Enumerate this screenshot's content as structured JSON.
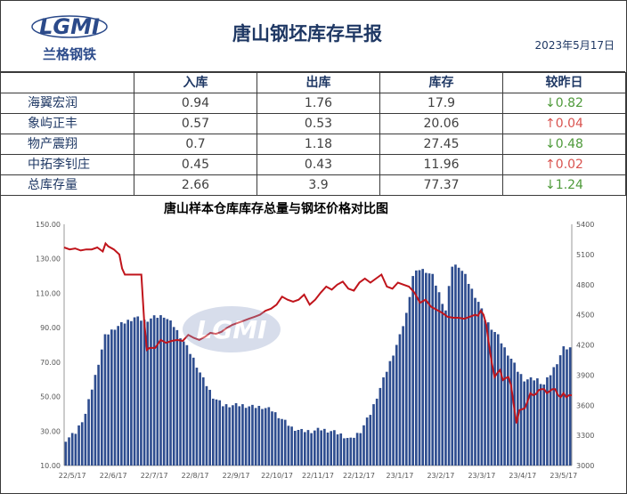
{
  "header": {
    "title": "唐山钢坯库存早报",
    "date": "2023年5月17日",
    "logo_letters": "LGMI",
    "logo_caption": "兰格钢铁"
  },
  "table": {
    "columns": [
      "",
      "入库",
      "出库",
      "库存",
      "较昨日"
    ],
    "rows": [
      {
        "name": "海翼宏润",
        "in": "0.94",
        "out": "1.76",
        "stock": "17.9",
        "arrow": "↓",
        "change": "0.82",
        "dir": "down"
      },
      {
        "name": "象屿正丰",
        "in": "0.57",
        "out": "0.53",
        "stock": "20.06",
        "arrow": "↑",
        "change": "0.04",
        "dir": "up"
      },
      {
        "name": "物产震翔",
        "in": "0.7",
        "out": "1.18",
        "stock": "27.45",
        "arrow": "↓",
        "change": "0.48",
        "dir": "down"
      },
      {
        "name": "中拓李钊庄",
        "in": "0.45",
        "out": "0.43",
        "stock": "11.96",
        "arrow": "↑",
        "change": "0.02",
        "dir": "up"
      },
      {
        "name": "总库存量",
        "in": "2.66",
        "out": "3.9",
        "stock": "77.37",
        "arrow": "↓",
        "change": "1.24",
        "dir": "down"
      }
    ]
  },
  "chart_data": {
    "type": "bar+line",
    "title": "唐山样本仓库库存总量与钢坯价格对比图",
    "x_labels": [
      "22/5/17",
      "22/6/17",
      "22/7/17",
      "22/8/17",
      "22/9/17",
      "22/10/17",
      "22/11/17",
      "22/12/17",
      "23/1/17",
      "23/2/17",
      "23/3/17",
      "23/4/17",
      "23/5/17"
    ],
    "y_left": {
      "min": 10,
      "max": 150,
      "ticks": [
        "10.00",
        "30.00",
        "50.00",
        "70.00",
        "90.00",
        "110.00",
        "130.00",
        "150.00"
      ]
    },
    "y_right": {
      "min": 3000,
      "max": 5400,
      "ticks": [
        "3000",
        "3300",
        "3600",
        "3900",
        "4200",
        "4500",
        "4800",
        "5100",
        "5400"
      ]
    },
    "bar_anchors": [
      [
        0,
        25
      ],
      [
        3,
        29
      ],
      [
        6,
        40
      ],
      [
        9,
        62
      ],
      [
        12,
        85
      ],
      [
        15,
        90
      ],
      [
        18,
        93
      ],
      [
        21,
        96
      ],
      [
        24,
        94
      ],
      [
        27,
        96
      ],
      [
        30,
        97
      ],
      [
        33,
        91
      ],
      [
        36,
        82
      ],
      [
        39,
        72
      ],
      [
        42,
        60
      ],
      [
        45,
        50
      ],
      [
        48,
        45
      ],
      [
        51,
        45
      ],
      [
        54,
        45
      ],
      [
        57,
        44
      ],
      [
        60,
        44
      ],
      [
        63,
        42
      ],
      [
        66,
        37
      ],
      [
        69,
        32
      ],
      [
        72,
        30
      ],
      [
        75,
        30
      ],
      [
        78,
        31
      ],
      [
        81,
        30
      ],
      [
        84,
        28
      ],
      [
        87,
        25
      ],
      [
        90,
        30
      ],
      [
        93,
        40
      ],
      [
        96,
        55
      ],
      [
        99,
        70
      ],
      [
        102,
        85
      ],
      [
        104,
        98
      ],
      [
        106,
        120
      ],
      [
        108,
        124
      ],
      [
        110,
        123
      ],
      [
        112,
        120
      ],
      [
        114,
        110
      ],
      [
        116,
        100
      ],
      [
        118,
        126
      ],
      [
        120,
        126
      ],
      [
        122,
        120
      ],
      [
        124,
        112
      ],
      [
        126,
        105
      ],
      [
        128,
        95
      ],
      [
        130,
        90
      ],
      [
        132,
        85
      ],
      [
        134,
        78
      ],
      [
        136,
        72
      ],
      [
        138,
        65
      ],
      [
        140,
        60
      ],
      [
        142,
        60
      ],
      [
        144,
        60
      ],
      [
        146,
        57
      ],
      [
        148,
        63
      ],
      [
        150,
        70
      ],
      [
        152,
        78
      ],
      [
        154,
        78
      ]
    ],
    "bar_count": 155,
    "bar_color": "#2e4d8f",
    "price_series": [
      [
        0,
        5170
      ],
      [
        2,
        5150
      ],
      [
        4,
        5160
      ],
      [
        6,
        5140
      ],
      [
        8,
        5150
      ],
      [
        10,
        5150
      ],
      [
        12,
        5170
      ],
      [
        14,
        5130
      ],
      [
        15,
        5210
      ],
      [
        16,
        5180
      ],
      [
        18,
        5150
      ],
      [
        20,
        5100
      ],
      [
        21,
        4960
      ],
      [
        22,
        4900
      ],
      [
        24,
        4900
      ],
      [
        26,
        4900
      ],
      [
        28,
        4900
      ],
      [
        29,
        4450
      ],
      [
        30,
        4150
      ],
      [
        31,
        4170
      ],
      [
        33,
        4170
      ],
      [
        35,
        4250
      ],
      [
        37,
        4220
      ],
      [
        39,
        4240
      ],
      [
        41,
        4250
      ],
      [
        43,
        4240
      ],
      [
        45,
        4300
      ],
      [
        47,
        4270
      ],
      [
        49,
        4250
      ],
      [
        51,
        4280
      ],
      [
        53,
        4320
      ],
      [
        55,
        4310
      ],
      [
        57,
        4330
      ],
      [
        59,
        4370
      ],
      [
        61,
        4400
      ],
      [
        63,
        4420
      ],
      [
        65,
        4440
      ],
      [
        67,
        4460
      ],
      [
        69,
        4480
      ],
      [
        71,
        4500
      ],
      [
        73,
        4540
      ],
      [
        75,
        4560
      ],
      [
        77,
        4600
      ],
      [
        79,
        4680
      ],
      [
        81,
        4650
      ],
      [
        83,
        4630
      ],
      [
        85,
        4650
      ],
      [
        87,
        4700
      ],
      [
        89,
        4600
      ],
      [
        91,
        4650
      ],
      [
        93,
        4720
      ],
      [
        95,
        4780
      ],
      [
        97,
        4750
      ],
      [
        99,
        4800
      ],
      [
        101,
        4830
      ],
      [
        103,
        4760
      ],
      [
        105,
        4740
      ],
      [
        107,
        4820
      ],
      [
        109,
        4860
      ],
      [
        111,
        4820
      ],
      [
        113,
        4860
      ],
      [
        115,
        4900
      ],
      [
        117,
        4780
      ],
      [
        119,
        4760
      ],
      [
        121,
        4820
      ],
      [
        123,
        4800
      ],
      [
        125,
        4780
      ],
      [
        127,
        4720
      ],
      [
        129,
        4620
      ],
      [
        131,
        4650
      ],
      [
        133,
        4580
      ],
      [
        135,
        4550
      ],
      [
        137,
        4520
      ],
      [
        139,
        4480
      ],
      [
        141,
        4470
      ],
      [
        143,
        4470
      ],
      [
        145,
        4460
      ],
      [
        147,
        4480
      ],
      [
        149,
        4500
      ],
      [
        150,
        4490
      ],
      [
        151,
        4540
      ],
      [
        152,
        4500
      ],
      [
        153,
        4400
      ],
      [
        154,
        4200
      ],
      [
        155,
        4020
      ],
      [
        156,
        3880
      ],
      [
        157,
        3920
      ],
      [
        158,
        3950
      ],
      [
        159,
        3850
      ],
      [
        160,
        3870
      ],
      [
        161,
        3880
      ],
      [
        162,
        3800
      ],
      [
        163,
        3600
      ],
      [
        164,
        3420
      ],
      [
        165,
        3550
      ],
      [
        166,
        3560
      ],
      [
        167,
        3570
      ],
      [
        168,
        3640
      ],
      [
        169,
        3720
      ],
      [
        170,
        3700
      ],
      [
        171,
        3710
      ],
      [
        172,
        3750
      ],
      [
        173,
        3760
      ],
      [
        174,
        3760
      ],
      [
        175,
        3720
      ],
      [
        176,
        3740
      ],
      [
        177,
        3760
      ],
      [
        178,
        3760
      ],
      [
        179,
        3700
      ],
      [
        180,
        3680
      ],
      [
        181,
        3720
      ],
      [
        182,
        3680
      ],
      [
        183,
        3700
      ],
      [
        184,
        3700
      ]
    ],
    "price_x_max": 184,
    "line_color": "#c0141b"
  }
}
